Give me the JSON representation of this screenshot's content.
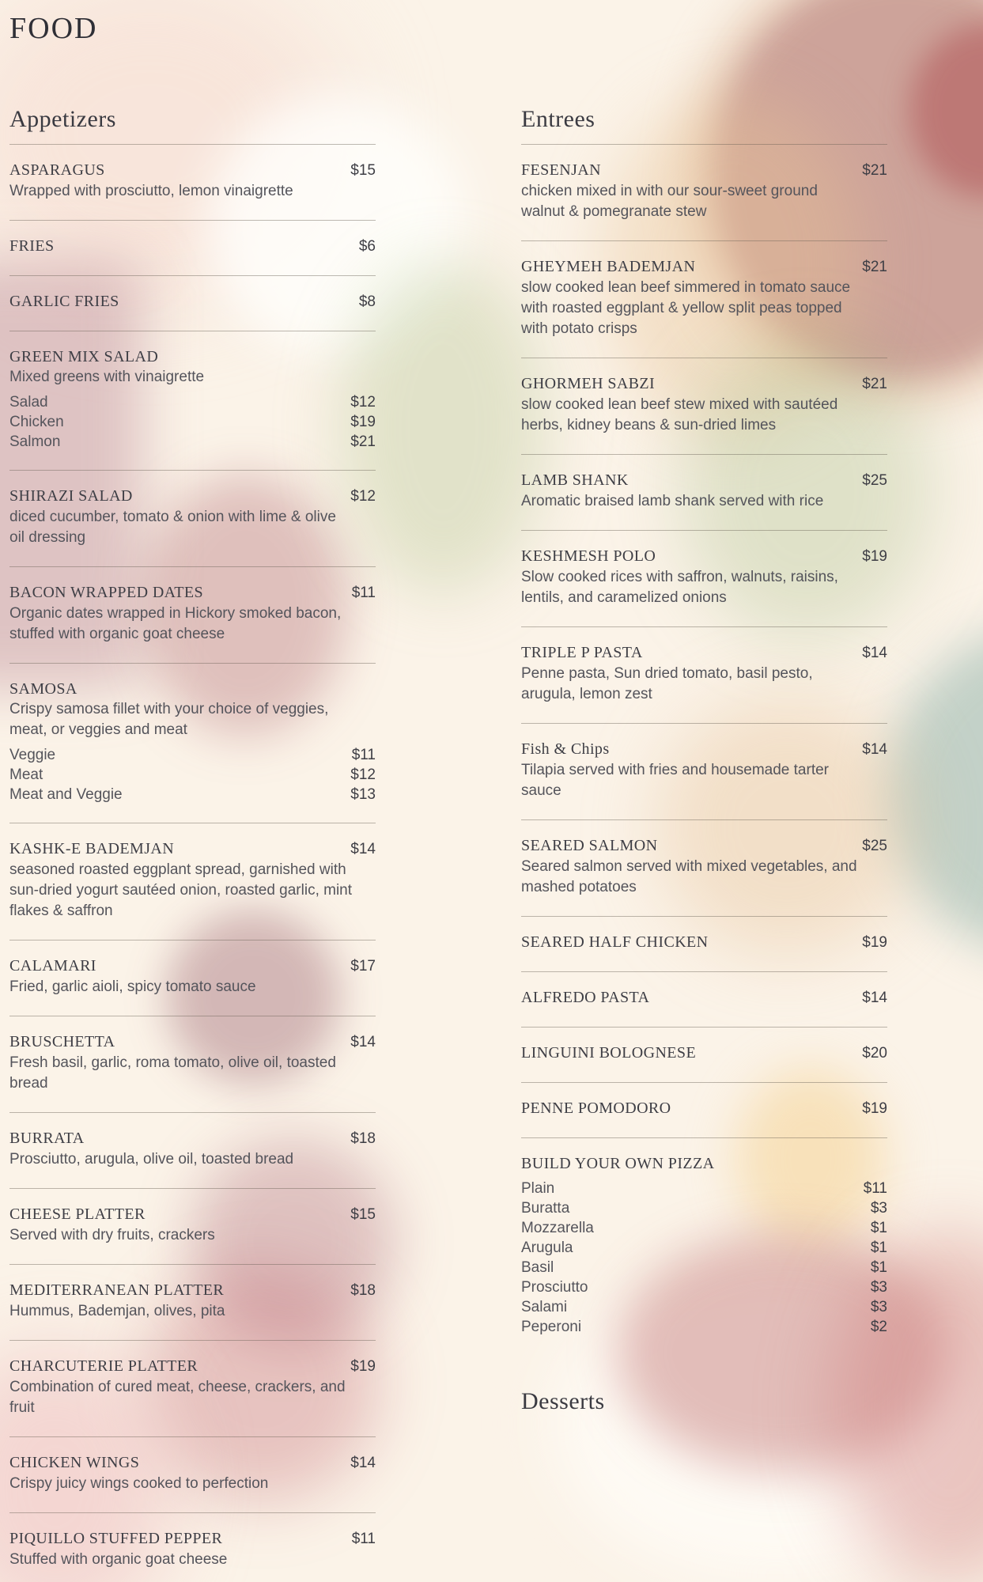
{
  "page_title": "FOOD",
  "colors": {
    "background": "#fbf3e8",
    "heading_text": "#3a3a41",
    "item_name_text": "#3e3e45",
    "description_text": "#54545b",
    "divider": "#aaa49a"
  },
  "sections": [
    {
      "title": "Appetizers",
      "column": "left",
      "items": [
        {
          "name": "ASPARAGUS",
          "price": "$15",
          "desc": "Wrapped with prosciutto, lemon vinaigrette"
        },
        {
          "name": "FRIES",
          "price": "$6"
        },
        {
          "name": "GARLIC FRIES",
          "price": "$8"
        },
        {
          "name": "GREEN MIX SALAD",
          "desc": "Mixed greens with vinaigrette",
          "options": [
            {
              "label": "Salad",
              "price": "$12"
            },
            {
              "label": "Chicken",
              "price": "$19"
            },
            {
              "label": "Salmon",
              "price": "$21"
            }
          ]
        },
        {
          "name": "SHIRAZI SALAD",
          "price": "$12",
          "desc": "diced cucumber, tomato & onion with lime & olive oil dressing"
        },
        {
          "name": "BACON WRAPPED DATES",
          "price": "$11",
          "desc": "Organic dates wrapped in Hickory smoked bacon, stuffed with organic goat cheese"
        },
        {
          "name": "SAMOSA",
          "desc": "Crispy samosa fillet with your choice of veggies, meat, or veggies and meat",
          "options": [
            {
              "label": "Veggie",
              "price": "$11"
            },
            {
              "label": "Meat",
              "price": "$12"
            },
            {
              "label": "Meat and Veggie",
              "price": "$13"
            }
          ]
        },
        {
          "name": "KASHK-E BADEMJAN",
          "price": "$14",
          "desc": "seasoned roasted eggplant spread, garnished with sun-dried yogurt sautéed onion, roasted garlic, mint flakes & saffron"
        },
        {
          "name": "CALAMARI",
          "price": "$17",
          "desc": "Fried, garlic aioli, spicy tomato sauce"
        },
        {
          "name": "BRUSCHETTA",
          "price": "$14",
          "desc": "Fresh basil, garlic, roma tomato, olive oil, toasted bread"
        },
        {
          "name": "BURRATA",
          "price": "$18",
          "desc": "Prosciutto, arugula, olive oil, toasted bread"
        },
        {
          "name": "CHEESE PLATTER",
          "price": "$15",
          "desc": "Served with dry fruits, crackers"
        },
        {
          "name": "MEDITERRANEAN PLATTER",
          "price": "$18",
          "desc": "Hummus, Bademjan, olives, pita"
        },
        {
          "name": "CHARCUTERIE PLATTER",
          "price": "$19",
          "desc": "Combination of cured meat, cheese, crackers, and fruit"
        },
        {
          "name": "CHICKEN WINGS",
          "price": "$14",
          "desc": "Crispy juicy wings cooked to perfection"
        },
        {
          "name": "PIQUILLO STUFFED PEPPER",
          "price": "$11",
          "desc": "Stuffed with organic goat cheese"
        }
      ]
    },
    {
      "title": "Entrees",
      "column": "right",
      "items": [
        {
          "name": "FESENJAN",
          "price": "$21",
          "desc": "chicken mixed in with our sour-sweet ground walnut & pomegranate stew"
        },
        {
          "name": "GHEYMEH BADEMJAN",
          "price": "$21",
          "desc": "slow cooked lean beef simmered in tomato sauce with roasted eggplant & yellow split peas topped with potato crisps"
        },
        {
          "name": "GHORMEH SABZI",
          "price": "$21",
          "desc": "slow cooked lean beef stew mixed with sautéed herbs, kidney beans & sun-dried limes"
        },
        {
          "name": "LAMB SHANK",
          "price": "$25",
          "desc": "Aromatic braised lamb shank served with rice"
        },
        {
          "name": "KESHMESH POLO",
          "price": "$19",
          "desc": "Slow cooked rices with saffron, walnuts, raisins, lentils, and caramelized onions"
        },
        {
          "name": "TRIPLE P PASTA",
          "price": "$14",
          "desc": "Penne pasta, Sun dried tomato, basil pesto, arugula, lemon zest"
        },
        {
          "name": "Fish & Chips",
          "price": "$14",
          "desc": "Tilapia served with fries and housemade tarter sauce"
        },
        {
          "name": "SEARED SALMON",
          "price": "$25",
          "desc": "Seared salmon served with mixed vegetables, and mashed potatoes"
        },
        {
          "name": "SEARED HALF CHICKEN",
          "price": "$19"
        },
        {
          "name": "ALFREDO PASTA",
          "price": "$14"
        },
        {
          "name": "LINGUINI BOLOGNESE",
          "price": "$20"
        },
        {
          "name": "PENNE POMODORO",
          "price": "$19"
        },
        {
          "name": "BUILD YOUR OWN PIZZA",
          "options": [
            {
              "label": "Plain",
              "price": "$11"
            },
            {
              "label": "Buratta",
              "price": "$3"
            },
            {
              "label": "Mozzarella",
              "price": "$1"
            },
            {
              "label": "Arugula",
              "price": "$1"
            },
            {
              "label": "Basil",
              "price": "$1"
            },
            {
              "label": "Prosciutto",
              "price": "$3"
            },
            {
              "label": "Salami",
              "price": "$3"
            },
            {
              "label": "Peperoni",
              "price": "$2"
            }
          ]
        }
      ]
    },
    {
      "title": "Desserts",
      "column": "right",
      "items": []
    }
  ]
}
